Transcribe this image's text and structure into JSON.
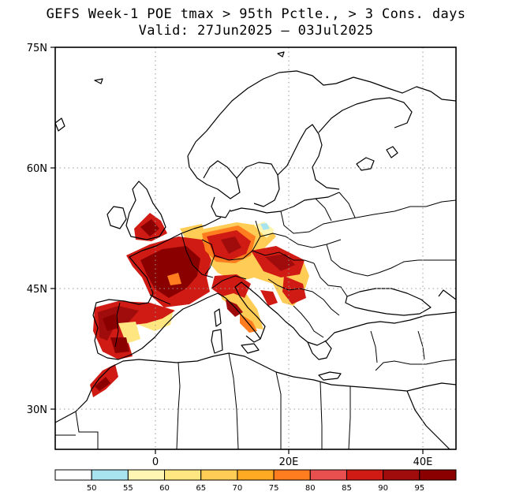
{
  "title_line1": "GEFS Week-1 POE tmax > 95th Pctle., > 3 Cons. days",
  "title_line2": "Valid: 27Jun2025 — 03Jul2025",
  "map": {
    "lat_labels": [
      "75N",
      "60N",
      "45N",
      "30N"
    ],
    "lon_labels": [
      "0",
      "20E",
      "40E"
    ],
    "lat_values": [
      75,
      60,
      45,
      30
    ],
    "lon_values": [
      0,
      20,
      40
    ],
    "lon_range": [
      -15,
      45
    ],
    "lat_range": [
      25,
      75
    ],
    "gridlines": "dotted"
  },
  "colorbar": {
    "labels": [
      "50",
      "55",
      "60",
      "65",
      "70",
      "75",
      "80",
      "85",
      "90",
      "95"
    ],
    "colors": [
      "#ffffff",
      "#a8e4f0",
      "#fff6b4",
      "#ffe680",
      "#ffcc55",
      "#ffaa22",
      "#ff7d1e",
      "#e85050",
      "#d01a14",
      "#a00c0c",
      "#8a0000"
    ]
  }
}
